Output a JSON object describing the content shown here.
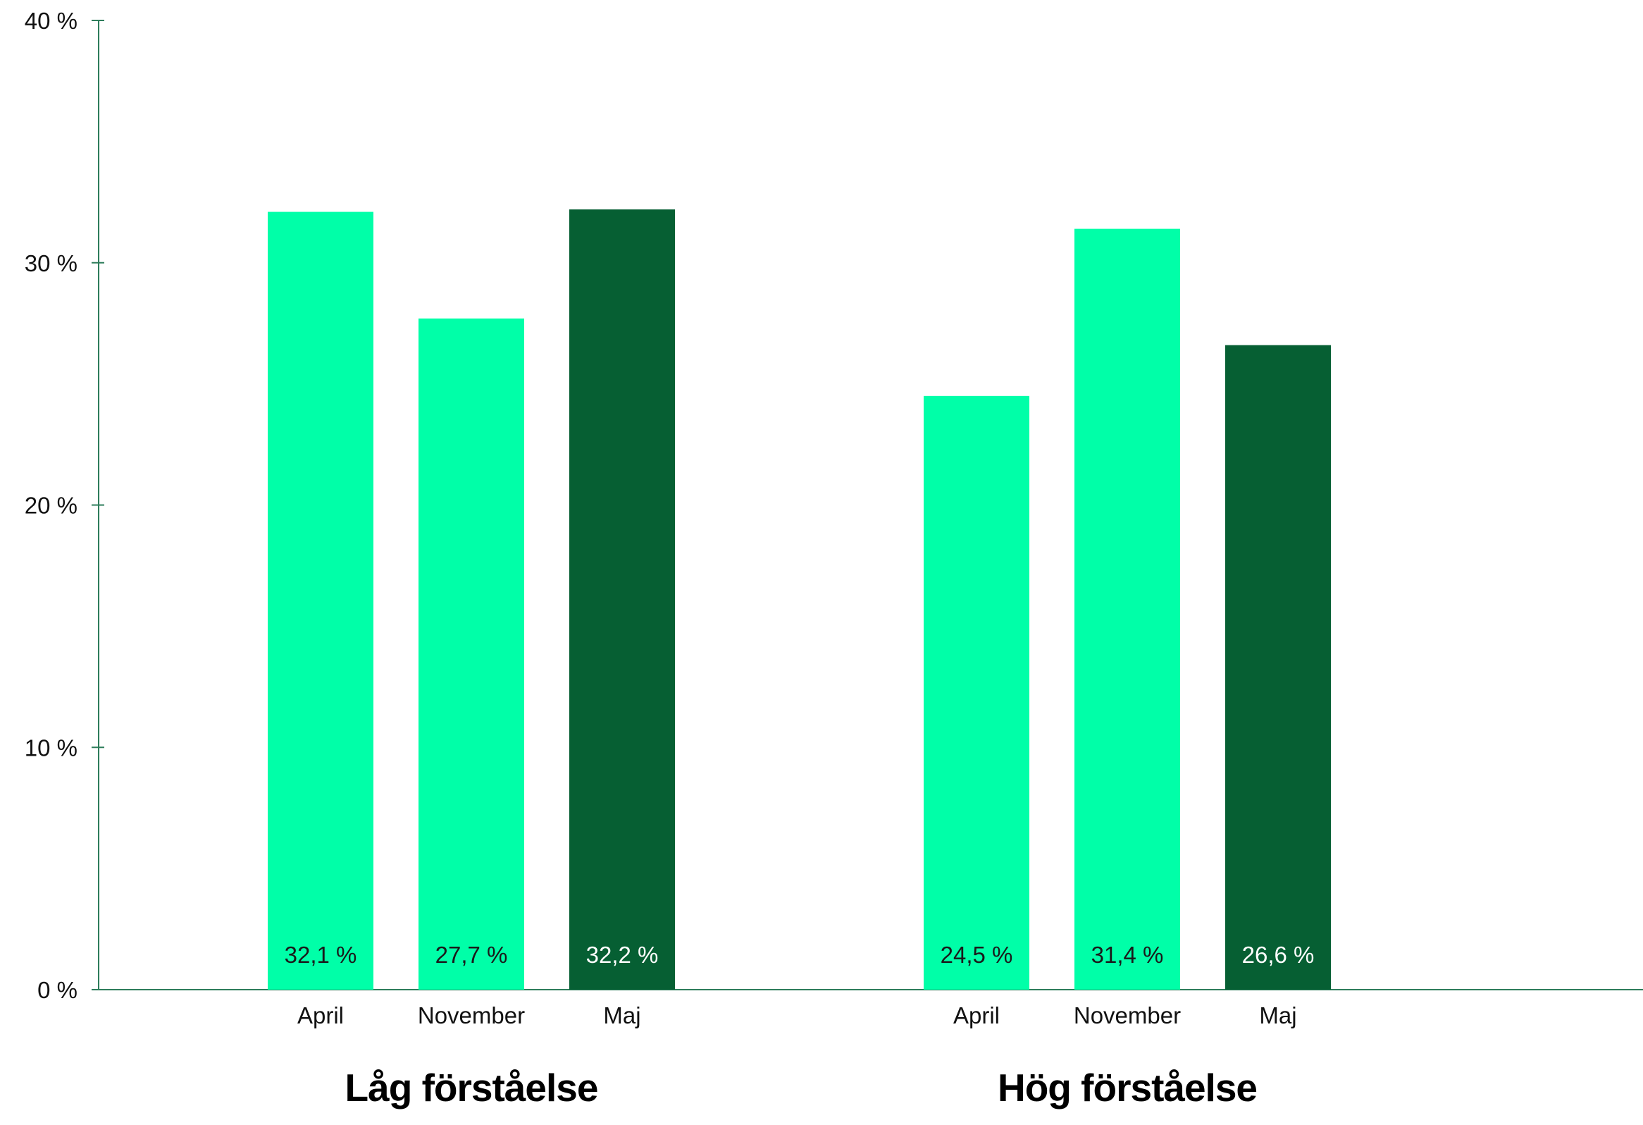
{
  "chart_data": {
    "type": "bar",
    "ylim": [
      0,
      40
    ],
    "yticks": [
      0,
      10,
      20,
      30,
      40
    ],
    "ytick_labels": [
      "0 %",
      "10 %",
      "20 %",
      "30 %",
      "40 %"
    ],
    "grid": false,
    "groups": [
      {
        "label": "Låg förståelse",
        "bars": [
          {
            "category": "April",
            "value": 32.1,
            "value_label": "32,1 %",
            "color": "#00FFA8",
            "text_color": "#1a1a1a"
          },
          {
            "category": "November",
            "value": 27.7,
            "value_label": "27,7 %",
            "color": "#00FFA8",
            "text_color": "#1a1a1a"
          },
          {
            "category": "Maj",
            "value": 32.2,
            "value_label": "32,2 %",
            "color": "#065F33",
            "text_color": "#ffffff"
          }
        ]
      },
      {
        "label": "Hög förståelse",
        "bars": [
          {
            "category": "April",
            "value": 24.5,
            "value_label": "24,5 %",
            "color": "#00FFA8",
            "text_color": "#1a1a1a"
          },
          {
            "category": "November",
            "value": 31.4,
            "value_label": "31,4 %",
            "color": "#00FFA8",
            "text_color": "#1a1a1a"
          },
          {
            "category": "Maj",
            "value": 26.6,
            "value_label": "26,6 %",
            "color": "#065F33",
            "text_color": "#ffffff"
          }
        ]
      }
    ],
    "axis_color": "#2E7D5B"
  }
}
